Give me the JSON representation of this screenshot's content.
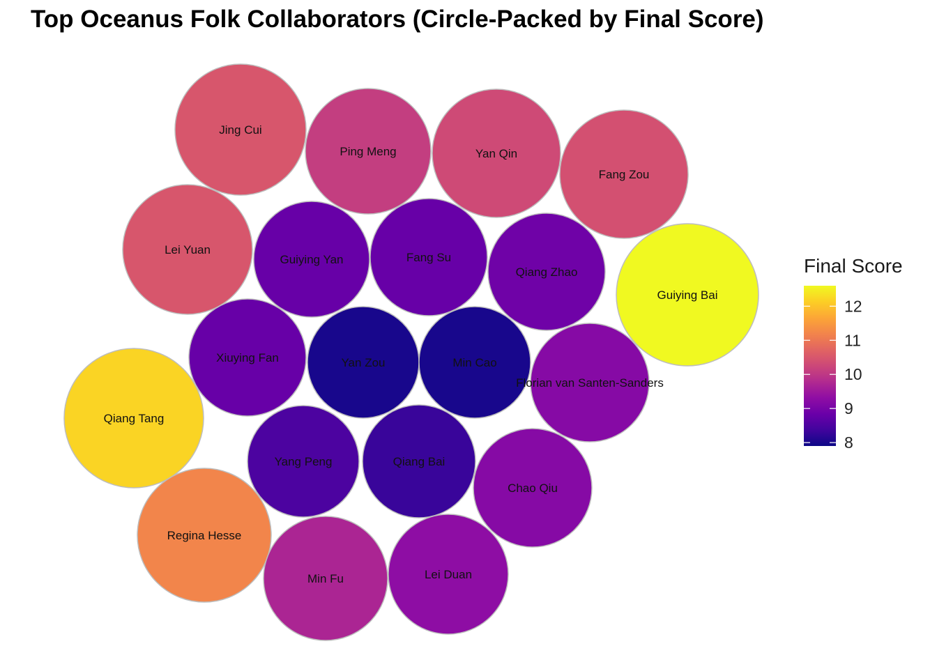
{
  "chart_data": {
    "type": "circle-packing",
    "title": "Top Oceanus Folk Collaborators (Circle-Packed by Final Score)",
    "color_scale": {
      "title": "Final Score",
      "palette": "plasma",
      "min": 7.9,
      "max": 12.6,
      "ticks": [
        8,
        9,
        10,
        11,
        12
      ]
    },
    "nodes": [
      {
        "name": "Jing Cui",
        "score": 10.5
      },
      {
        "name": "Ping Meng",
        "score": 10.1
      },
      {
        "name": "Yan Qin",
        "score": 10.3
      },
      {
        "name": "Fang Zou",
        "score": 10.4
      },
      {
        "name": "Lei Yuan",
        "score": 10.5
      },
      {
        "name": "Guiying Yan",
        "score": 8.8
      },
      {
        "name": "Fang Su",
        "score": 8.8
      },
      {
        "name": "Qiang Zhao",
        "score": 8.9
      },
      {
        "name": "Guiying Bai",
        "score": 12.6
      },
      {
        "name": "Xiuying Fan",
        "score": 8.8
      },
      {
        "name": "Yan Zou",
        "score": 8.0
      },
      {
        "name": "Min Cao",
        "score": 8.0
      },
      {
        "name": "Florian van Santen-Sanders",
        "score": 9.2
      },
      {
        "name": "Qiang Tang",
        "score": 12.2
      },
      {
        "name": "Yang Peng",
        "score": 8.5
      },
      {
        "name": "Qiang Bai",
        "score": 8.3
      },
      {
        "name": "Chao Qiu",
        "score": 9.2
      },
      {
        "name": "Regina Hesse",
        "score": 11.2
      },
      {
        "name": "Min Fu",
        "score": 9.7
      },
      {
        "name": "Lei Duan",
        "score": 9.3
      }
    ]
  }
}
